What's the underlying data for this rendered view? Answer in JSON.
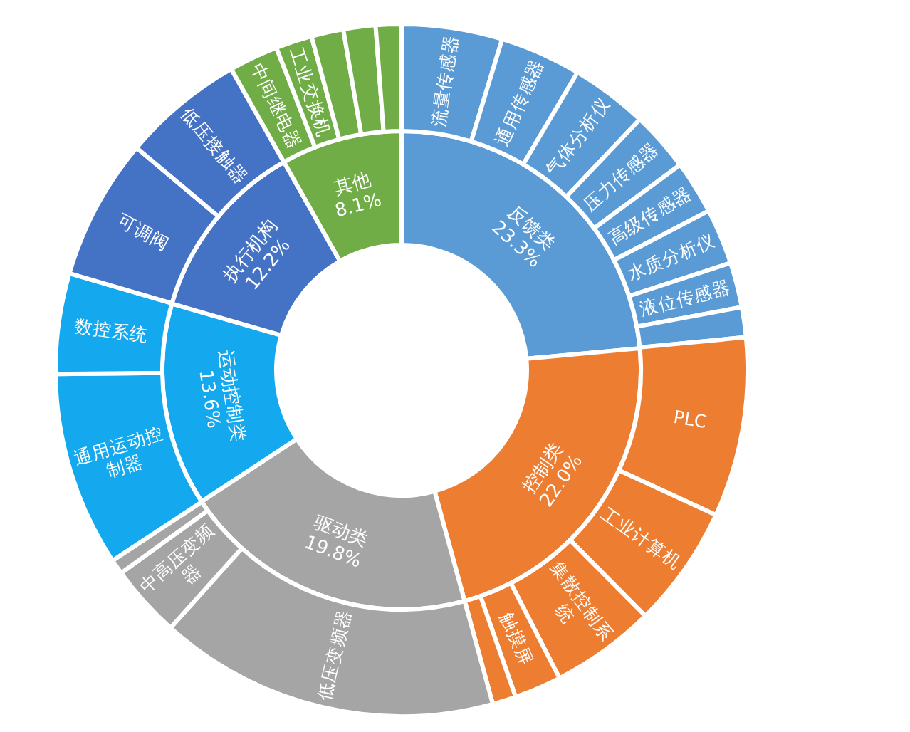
{
  "chart_data": [
    {
      "type": "donut",
      "categories": [
        "反馈类",
        "控制类",
        "驱动类",
        "运动控制类",
        "执行机构",
        "其他"
      ],
      "values": [
        23.3,
        22.0,
        19.8,
        13.6,
        12.2,
        8.1
      ],
      "value_labels": [
        "23.3%",
        "22.0%",
        "19.8%",
        "13.6%",
        "12.2%",
        "8.1%"
      ],
      "colors": [
        "#5b9bd5",
        "#ed7d31",
        "#a5a5a5",
        "#14a9ee",
        "#4472c4",
        "#70ad47"
      ]
    },
    {
      "type": "donut",
      "categories": [
        "流量传感器",
        "通用传感器",
        "气体分析仪",
        "压力传感器",
        "高级传感器",
        "水质分析仪",
        "液位传感器",
        null,
        "PLC",
        "工业计算机",
        "集散控制系统",
        "触摸屏",
        null,
        "低压变频器",
        "中高压变频器",
        null,
        "通用运动控制器",
        "数控系统",
        "可调阀",
        "低压接触器",
        "中间继电器",
        "工业交换机",
        null,
        null,
        null
      ],
      "values": [
        4.7,
        3.8,
        3.6,
        2.8,
        2.5,
        2.6,
        2.1,
        1.4,
        8.4,
        5.7,
        4.9,
        2.2,
        1.1,
        15.9,
        3.4,
        0.7,
        9.1,
        4.7,
        6.6,
        5.7,
        2.3,
        1.7,
        1.5,
        1.5,
        1.2
      ],
      "colors": [
        "#5b9bd5",
        "#5b9bd5",
        "#5b9bd5",
        "#5b9bd5",
        "#5b9bd5",
        "#5b9bd5",
        "#5b9bd5",
        "#5b9bd5",
        "#ed7d31",
        "#ed7d31",
        "#ed7d31",
        "#ed7d31",
        "#ed7d31",
        "#a5a5a5",
        "#a5a5a5",
        "#a5a5a5",
        "#14a9ee",
        "#14a9ee",
        "#4472c4",
        "#4472c4",
        "#70ad47",
        "#70ad47",
        "#70ad47",
        "#70ad47",
        "#70ad47"
      ]
    }
  ]
}
